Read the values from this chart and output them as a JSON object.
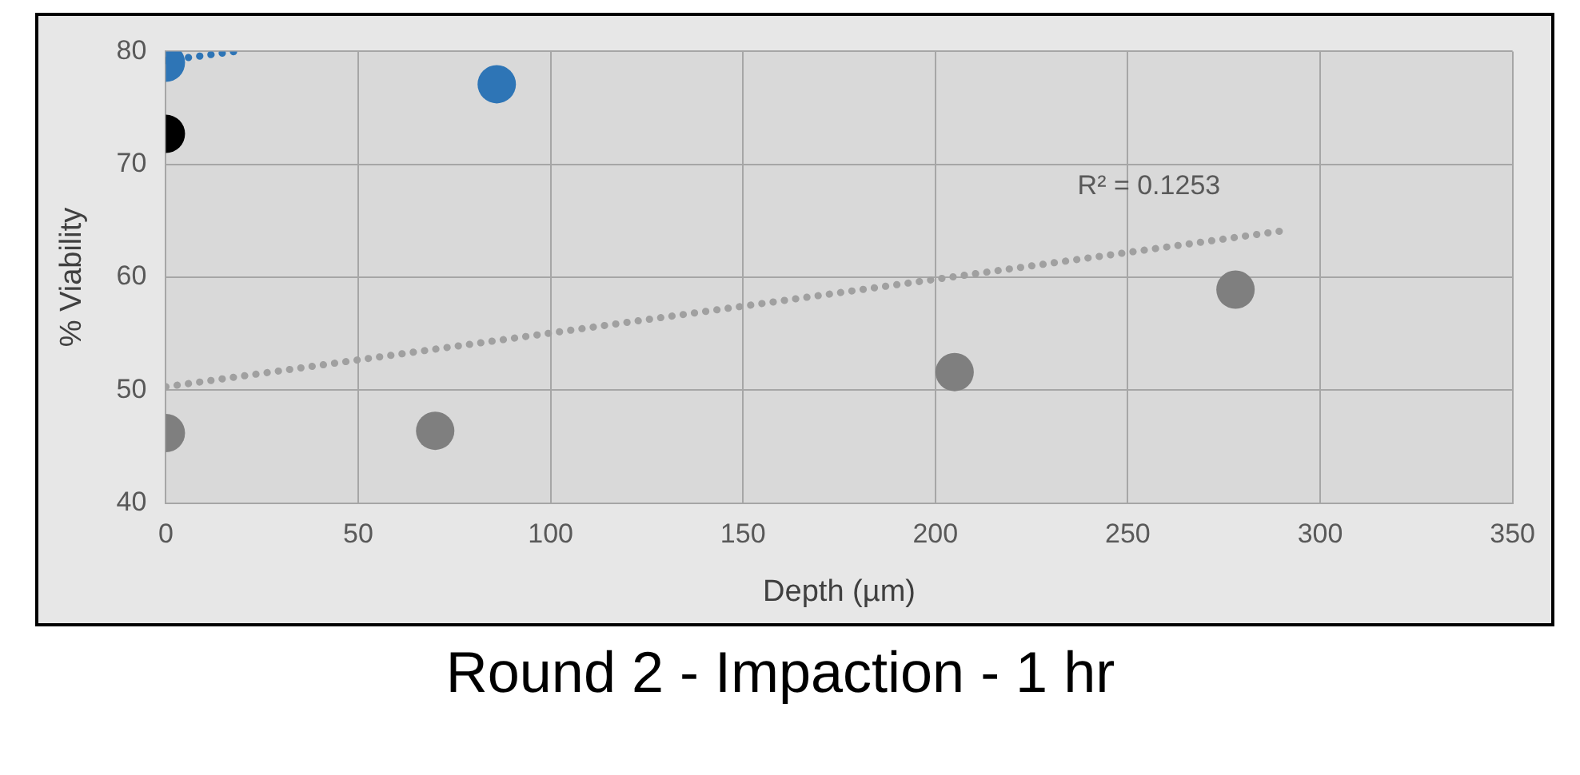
{
  "chart_data": {
    "type": "scatter",
    "title": "Round 2 - Impaction - 1 hr",
    "xlabel": "Depth (µm)",
    "ylabel": "% Viability",
    "xlim": [
      0,
      350
    ],
    "xticks": [
      0,
      50,
      100,
      150,
      200,
      250,
      300,
      350
    ],
    "ylim": [
      40,
      80
    ],
    "yticks": [
      40,
      50,
      60,
      70,
      80
    ],
    "grid": true,
    "marker": "circle",
    "series": [
      {
        "type": "scatter",
        "color": "#7f7f7f",
        "x": [
          0,
          70,
          205,
          278
        ],
        "values": [
          46.2,
          46.4,
          51.6,
          58.9
        ]
      },
      {
        "type": "line",
        "color": "#a0a0a0",
        "line_style": "dotted",
        "marker": "none",
        "x": [
          0,
          290
        ],
        "values": [
          50.3,
          64.1
        ]
      },
      {
        "type": "scatter",
        "color": "#2e75b6",
        "x": [
          0,
          86
        ],
        "values": [
          79,
          77.1
        ]
      },
      {
        "type": "line",
        "color": "#2e75b6",
        "line_style": "dotted",
        "marker": "none",
        "x": [
          0,
          18
        ],
        "values": [
          79.2,
          80
        ]
      },
      {
        "type": "scatter",
        "color": "#000000",
        "x": [
          0
        ],
        "values": [
          72.7
        ]
      }
    ],
    "annotations": [
      "R² = 0.1253"
    ]
  }
}
